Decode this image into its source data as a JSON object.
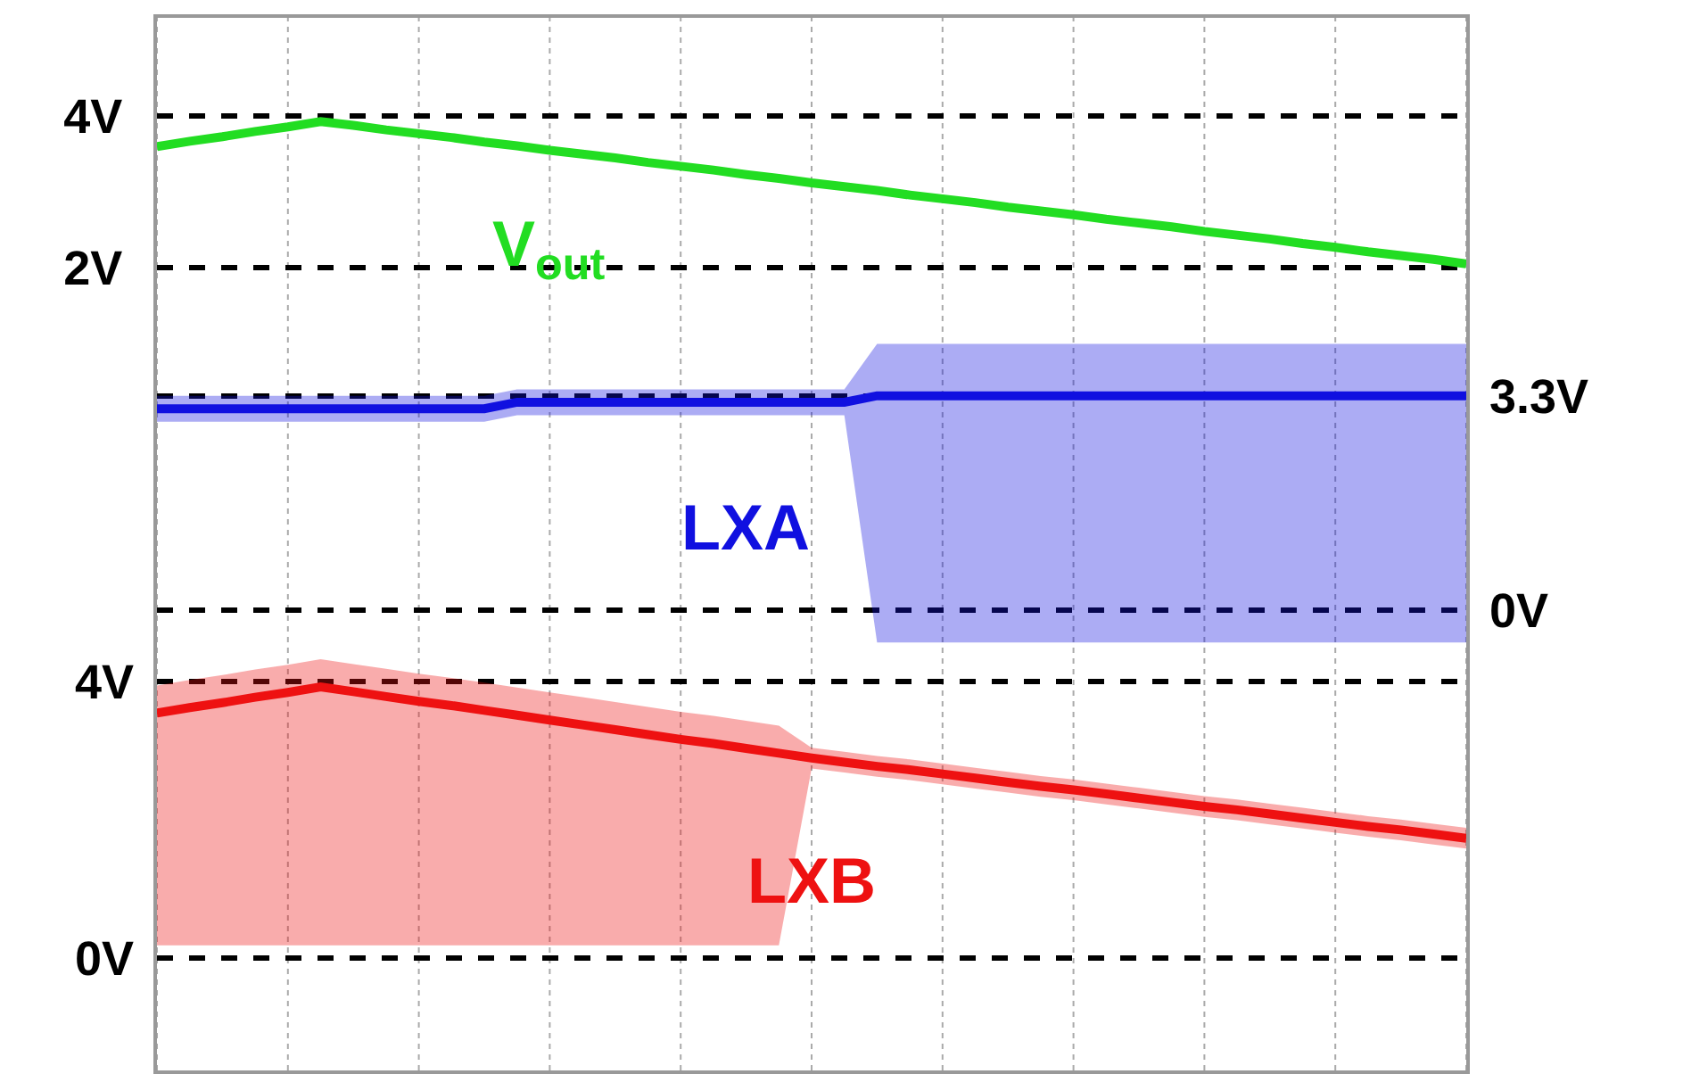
{
  "chart_data": {
    "type": "line",
    "categories": [
      null,
      null,
      null,
      null,
      null,
      null,
      null,
      null,
      null,
      null,
      null,
      null,
      null,
      null,
      null,
      null,
      null,
      null,
      null,
      null,
      null,
      null,
      null,
      null,
      null,
      null,
      null,
      null,
      null,
      null,
      null,
      null,
      null,
      null,
      null,
      null,
      null,
      null,
      null,
      null,
      null
    ],
    "series": [
      {
        "name": "V$_{out}$",
        "color": "#22dd22",
        "axis": "y",
        "values": [
          3.6,
          3.67,
          3.73,
          3.8,
          3.86,
          3.93,
          3.88,
          3.82,
          3.77,
          3.72,
          3.66,
          3.61,
          3.55,
          3.5,
          3.45,
          3.39,
          3.34,
          3.29,
          3.23,
          3.18,
          3.12,
          3.07,
          3.02,
          2.96,
          2.91,
          2.86,
          2.8,
          2.75,
          2.7,
          2.64,
          2.59,
          2.54,
          2.48,
          2.43,
          2.38,
          2.32,
          2.27,
          2.21,
          2.16,
          2.11,
          2.05
        ]
      },
      {
        "name": "LXA",
        "color": "#1010e0",
        "axis": "y2",
        "values": [
          3.1,
          3.1,
          3.1,
          3.1,
          3.1,
          3.1,
          3.1,
          3.1,
          3.1,
          3.1,
          3.1,
          3.2,
          3.2,
          3.2,
          3.2,
          3.2,
          3.2,
          3.2,
          3.2,
          3.2,
          3.2,
          3.2,
          3.3,
          3.3,
          3.3,
          3.3,
          3.3,
          3.3,
          3.3,
          3.3,
          3.3,
          3.3,
          3.3,
          3.3,
          3.3,
          3.3,
          3.3,
          3.3,
          3.3,
          3.3,
          3.3
        ],
        "lower": [
          2.9,
          2.9,
          2.9,
          2.9,
          2.9,
          2.9,
          2.9,
          2.9,
          2.9,
          2.9,
          2.9,
          3.0,
          3.0,
          3.0,
          3.0,
          3.0,
          3.0,
          3.0,
          3.0,
          3.0,
          3.0,
          3.0,
          -0.5,
          -0.5,
          -0.5,
          -0.5,
          -0.5,
          -0.5,
          -0.5,
          -0.5,
          -0.5,
          -0.5,
          -0.5,
          -0.5,
          -0.5,
          -0.5,
          -0.5,
          -0.5,
          -0.5,
          -0.5,
          -0.5
        ],
        "upper": [
          3.3,
          3.3,
          3.3,
          3.3,
          3.3,
          3.3,
          3.3,
          3.3,
          3.3,
          3.3,
          3.3,
          3.4,
          3.4,
          3.4,
          3.4,
          3.4,
          3.4,
          3.4,
          3.4,
          3.4,
          3.4,
          3.4,
          4.1,
          4.1,
          4.1,
          4.1,
          4.1,
          4.1,
          4.1,
          4.1,
          4.1,
          4.1,
          4.1,
          4.1,
          4.1,
          4.1,
          4.1,
          4.1,
          4.1,
          4.1,
          4.1
        ]
      },
      {
        "name": "LXB",
        "color": "#ee1111",
        "axis": "y3",
        "values": [
          3.54,
          3.62,
          3.69,
          3.77,
          3.84,
          3.92,
          3.85,
          3.78,
          3.71,
          3.65,
          3.58,
          3.51,
          3.44,
          3.37,
          3.3,
          3.23,
          3.16,
          3.1,
          3.03,
          2.96,
          2.89,
          2.83,
          2.77,
          2.72,
          2.66,
          2.6,
          2.54,
          2.48,
          2.43,
          2.37,
          2.31,
          2.25,
          2.19,
          2.14,
          2.08,
          2.02,
          1.96,
          1.9,
          1.85,
          1.79,
          1.73
        ],
        "lower": [
          0.18,
          0.18,
          0.18,
          0.18,
          0.18,
          0.18,
          0.18,
          0.18,
          0.18,
          0.18,
          0.18,
          0.18,
          0.18,
          0.18,
          0.18,
          0.18,
          0.18,
          0.18,
          0.18,
          0.18,
          2.74,
          2.68,
          2.62,
          2.57,
          2.51,
          2.45,
          2.39,
          2.33,
          2.28,
          2.22,
          2.16,
          2.1,
          2.04,
          1.99,
          1.93,
          1.87,
          1.81,
          1.75,
          1.7,
          1.64,
          1.58
        ],
        "upper": [
          3.94,
          4.02,
          4.09,
          4.17,
          4.24,
          4.32,
          4.25,
          4.18,
          4.11,
          4.05,
          3.98,
          3.91,
          3.84,
          3.77,
          3.7,
          3.63,
          3.56,
          3.5,
          3.43,
          3.36,
          3.04,
          2.98,
          2.92,
          2.87,
          2.81,
          2.75,
          2.69,
          2.63,
          2.58,
          2.52,
          2.46,
          2.4,
          2.34,
          2.29,
          2.23,
          2.17,
          2.11,
          2.05,
          2.0,
          1.94,
          1.88
        ]
      }
    ],
    "ylim": [
      -8.6,
      5.3
    ],
    "yticks": [
      {
        "value": 4,
        "label": "4V"
      },
      {
        "value": 2,
        "label": "2V"
      }
    ],
    "y2lim": [
      -7.09,
      9.12
    ],
    "y2ticks": [
      {
        "value": 3.3,
        "label": "3.3V"
      },
      {
        "value": 0,
        "label": "0V"
      }
    ],
    "y3lim": [
      -1.63,
      13.6
    ],
    "y3ticks": [
      {
        "value": 4,
        "label": "4V"
      },
      {
        "value": 0,
        "label": "0V"
      }
    ],
    "grid": true,
    "legend": false,
    "marker": "none",
    "line_style": "solid"
  }
}
